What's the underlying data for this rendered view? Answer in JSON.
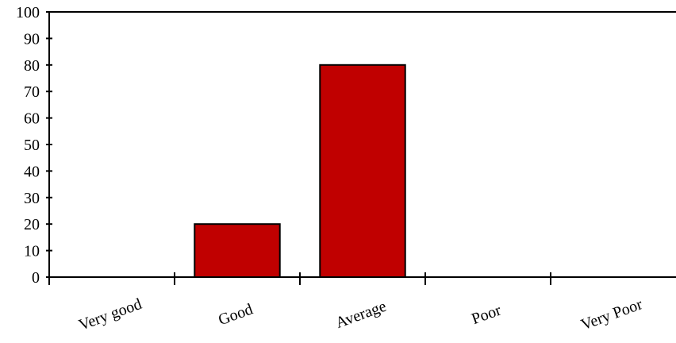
{
  "chart_data": {
    "type": "bar",
    "categories": [
      "Very good",
      "Good",
      "Average",
      "Poor",
      "Very Poor"
    ],
    "values": [
      0,
      20,
      80,
      0,
      0
    ],
    "ylim": [
      0,
      100
    ],
    "yticks": [
      0,
      10,
      20,
      30,
      40,
      50,
      60,
      70,
      80,
      90,
      100
    ],
    "grid": false,
    "legend": "none",
    "colors": {
      "bar": "#c00000",
      "axis": "#000000"
    }
  }
}
